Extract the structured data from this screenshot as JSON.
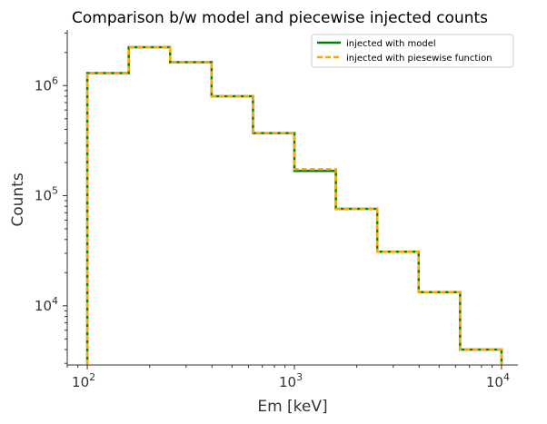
{
  "chart_data": {
    "type": "line",
    "drawstyle": "steps-post",
    "title": "Comparison b/w model and piecewise injected counts",
    "xlabel": "Em [keV]",
    "ylabel": "Counts",
    "xscale": "log",
    "yscale": "log",
    "xlim": [
      80,
      12000
    ],
    "ylim": [
      2900,
      3200000
    ],
    "xticks": [
      {
        "value": 100,
        "base": "10",
        "exp": "2"
      },
      {
        "value": 1000,
        "base": "10",
        "exp": "3"
      },
      {
        "value": 10000,
        "base": "10",
        "exp": "4"
      }
    ],
    "yticks": [
      {
        "value": 10000,
        "base": "10",
        "exp": "4"
      },
      {
        "value": 100000,
        "base": "10",
        "exp": "5"
      },
      {
        "value": 1000000,
        "base": "10",
        "exp": "6"
      }
    ],
    "bin_edges": [
      100,
      158.5,
      251.2,
      398.1,
      631.0,
      1000,
      1585,
      2512,
      3981,
      6310,
      10000
    ],
    "series": [
      {
        "name": "injected with model",
        "color": "#008000",
        "linestyle": "solid",
        "values": [
          1300000,
          2230000,
          1630000,
          800000,
          370000,
          168000,
          76000,
          31000,
          13300,
          4000
        ]
      },
      {
        "name": "injected with piesewise function",
        "color": "#ffa500",
        "linestyle": "dashed",
        "values": [
          1300000,
          2230000,
          1630000,
          800000,
          370000,
          174000,
          76000,
          31000,
          13300,
          4000
        ]
      }
    ],
    "legend": "upper-right",
    "grid": false
  }
}
